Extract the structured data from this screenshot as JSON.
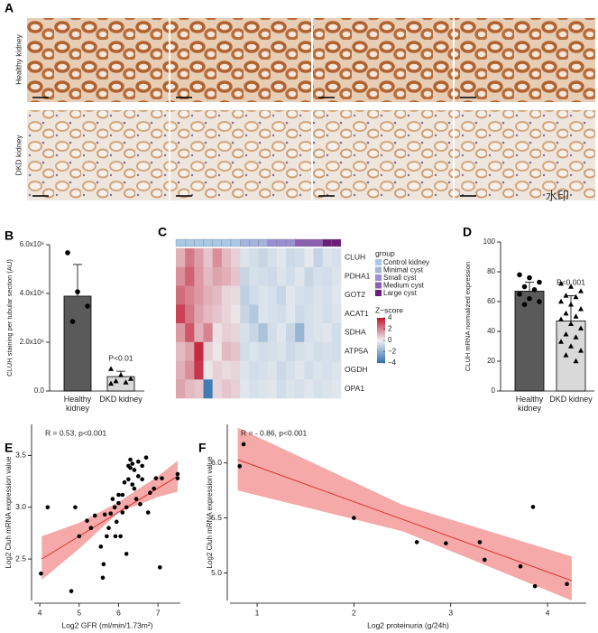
{
  "panel_labels": [
    "A",
    "B",
    "C",
    "D",
    "E",
    "F"
  ],
  "figure_a": {
    "row_labels": [
      "Healthy kidney",
      "DKD kidney"
    ],
    "watermark": "水印"
  },
  "chart_data": [
    {
      "type": "bar",
      "categories": [
        "Healthy kidney",
        "DKD kidney"
      ],
      "values": [
        3890000,
        590000
      ],
      "errors": [
        1300000,
        220000
      ],
      "colors": [
        "#5a5a5a",
        "#d9d9d9"
      ],
      "points": [
        [
          5670000,
          4070000,
          3480000,
          2850000
        ],
        [
          900000,
          650000,
          500000,
          400000,
          350000,
          300000
        ]
      ],
      "point_markers": [
        "circle",
        "triangle"
      ],
      "ylabel": "CLUH staining per tubular section (AU)",
      "annotation": "P<0.01",
      "ylim": [
        0,
        6000000
      ],
      "yticks": [
        {
          "value": 0,
          "label": "0.0"
        },
        {
          "value": 2000000,
          "label": "2.0x10⁶"
        },
        {
          "value": 4000000,
          "label": "4.0x10⁶"
        },
        {
          "value": 6000000,
          "label": "6.0x10⁶"
        }
      ]
    },
    {
      "type": "heatmap",
      "rows": [
        "CLUH",
        "PDHA1",
        "GOT2",
        "ACAT1",
        "SDHA",
        "ATP5A",
        "OGDH",
        "OPA1"
      ],
      "values": [
        [
          1.2,
          2.2,
          1.5,
          0.8,
          1.8,
          1.0,
          0.6,
          -0.4,
          -0.6,
          -0.8,
          -0.5,
          -0.3,
          -0.7,
          -0.6,
          -0.2,
          -0.9,
          -0.4,
          -0.5
        ],
        [
          1.8,
          2.6,
          1.6,
          1.0,
          1.4,
          1.2,
          0.8,
          -0.8,
          -0.5,
          -0.6,
          -0.7,
          -0.4,
          -0.6,
          -0.3,
          -0.8,
          -0.5,
          -0.6,
          -0.4
        ],
        [
          2.4,
          2.0,
          1.6,
          1.2,
          1.0,
          0.5,
          0.4,
          -1.0,
          -0.6,
          -0.4,
          -0.5,
          -0.8,
          -0.3,
          -0.5,
          -0.6,
          -0.4,
          -0.5,
          -0.3
        ],
        [
          3.2,
          2.2,
          1.4,
          1.0,
          0.8,
          0.5,
          0.2,
          -0.8,
          -1.2,
          -0.4,
          -0.5,
          -0.6,
          -0.3,
          -0.7,
          -0.5,
          -0.4,
          -0.6,
          -0.4
        ],
        [
          1.6,
          2.8,
          1.2,
          2.0,
          0.3,
          0.6,
          0.5,
          -0.5,
          -0.8,
          -1.4,
          -0.6,
          -0.3,
          -0.8,
          -1.8,
          -0.5,
          -0.4,
          -0.3,
          -0.6
        ],
        [
          1.0,
          1.4,
          3.6,
          0.6,
          0.2,
          1.0,
          0.8,
          -0.6,
          -0.4,
          -0.6,
          -0.5,
          -0.4,
          -0.7,
          -0.5,
          -0.4,
          -0.6,
          -0.5,
          -0.6
        ],
        [
          1.2,
          1.8,
          3.4,
          0.2,
          0.6,
          0.4,
          0.5,
          -0.4,
          -0.6,
          -0.5,
          -0.4,
          -0.7,
          -0.5,
          -0.3,
          -0.6,
          -0.4,
          -0.5,
          -0.4
        ],
        [
          1.4,
          1.0,
          0.8,
          -3.6,
          0.5,
          0.8,
          0.6,
          -0.3,
          -0.5,
          -0.4,
          -0.3,
          -0.6,
          -0.4,
          -0.5,
          -0.3,
          -0.5,
          -0.4,
          -0.3
        ]
      ],
      "groups": {
        "title": "group",
        "names": [
          "Control kidney",
          "Minimal cyst",
          "Small cyst",
          "Medium cyst",
          "Large cyst"
        ],
        "colors": [
          "#a9c8e6",
          "#a3b3de",
          "#9a8fd0",
          "#8d5fb3",
          "#6b1f7c"
        ],
        "columns": [
          0,
          0,
          0,
          0,
          0,
          0,
          0,
          1,
          1,
          1,
          2,
          2,
          2,
          3,
          3,
          3,
          4,
          4
        ]
      },
      "colorbar": {
        "title": "Z−score",
        "zlim": [
          -4,
          4
        ],
        "colors": [
          "#2f6fae",
          "#eef0f2",
          "#c0162e"
        ],
        "zticks": [
          4,
          2,
          0,
          {
            "value": -2,
            "label": "−2"
          },
          {
            "value": -4,
            "label": "−4"
          }
        ]
      }
    },
    {
      "type": "bar",
      "categories": [
        "Healthy kidney",
        "DKD kidney"
      ],
      "values": [
        67,
        47
      ],
      "errors": [
        6,
        17
      ],
      "colors": [
        "#5a5a5a",
        "#d9d9d9"
      ],
      "points": [
        [
          78,
          76,
          73,
          70,
          68,
          65,
          62,
          60,
          58
        ],
        [
          72,
          70,
          67,
          64,
          63,
          60,
          58,
          55,
          52,
          50,
          48,
          45,
          42,
          38,
          36,
          33,
          30,
          27,
          24,
          20
        ]
      ],
      "point_markers": [
        "circle",
        "triangle"
      ],
      "ylabel": "CLUH mRNA normalized expression",
      "annotation": "P<0.001",
      "ylim": [
        0,
        100
      ],
      "yticks": [
        0,
        20,
        40,
        60,
        80,
        100
      ]
    },
    {
      "type": "scatter",
      "x": [
        4.03,
        4.2,
        4.8,
        4.9,
        5.0,
        5.2,
        5.3,
        5.4,
        5.55,
        5.6,
        5.62,
        5.65,
        5.7,
        5.75,
        5.8,
        5.85,
        5.9,
        5.92,
        5.95,
        6.0,
        6.0,
        6.05,
        6.1,
        6.1,
        6.15,
        6.2,
        6.2,
        6.25,
        6.3,
        6.3,
        6.35,
        6.4,
        6.4,
        6.45,
        6.5,
        6.5,
        6.55,
        6.6,
        6.6,
        6.7,
        6.75,
        6.8,
        6.9,
        6.95,
        7.05,
        7.1,
        7.5,
        7.5,
        6.35,
        6.25
      ],
      "y": [
        2.36,
        3.0,
        2.19,
        3.0,
        2.72,
        2.87,
        2.8,
        2.92,
        2.62,
        2.32,
        2.45,
        2.93,
        2.72,
        2.8,
        2.94,
        3.08,
        3.0,
        2.72,
        2.86,
        3.04,
        3.12,
        2.72,
        2.95,
        3.12,
        3.24,
        2.55,
        3.0,
        3.27,
        3.38,
        3.46,
        3.42,
        3.36,
        3.18,
        3.08,
        3.3,
        3.44,
        3.03,
        3.27,
        3.4,
        3.48,
        2.95,
        3.14,
        3.18,
        3.28,
        2.42,
        3.28,
        3.28,
        3.32,
        3.22,
        3.4
      ],
      "color": "#000000",
      "fit": {
        "x": [
          4.05,
          7.5
        ],
        "y": [
          2.5,
          3.3
        ],
        "color": "#d7322e"
      },
      "band": {
        "x": [
          4.05,
          5,
          6,
          7,
          7.5
        ],
        "lower": [
          2.3,
          2.6,
          2.95,
          3.1,
          3.15
        ],
        "upper": [
          2.72,
          2.85,
          3.05,
          3.3,
          3.45
        ],
        "color": "#f39a9a"
      },
      "annotation": "R = 0.53, p<0.001",
      "xlabel": "Log2 GFR (ml/min/1.73m²)",
      "ylabel": "Log2 Cluh mRNA expression value",
      "xlim": [
        3.86,
        7.57
      ],
      "ylim": [
        2.1,
        3.8
      ],
      "xticks": [
        4,
        5,
        6,
        7
      ],
      "yticks": [
        2.5,
        {
          "value": 3,
          "label": "3.0"
        },
        3.5
      ]
    },
    {
      "type": "scatter",
      "x": [
        0.82,
        0.86,
        2.0,
        2.65,
        2.95,
        3.3,
        3.35,
        3.72,
        3.85,
        3.87,
        4.2
      ],
      "y": [
        5.97,
        6.17,
        5.5,
        5.28,
        5.27,
        5.28,
        5.12,
        5.06,
        5.6,
        4.88,
        4.9
      ],
      "color": "#000000",
      "fit": {
        "x": [
          0.8,
          4.25
        ],
        "y": [
          6.03,
          4.93
        ],
        "color": "#d7322e"
      },
      "band": {
        "x": [
          0.8,
          2.5,
          4.25
        ],
        "lower": [
          5.75,
          5.38,
          4.75
        ],
        "upper": [
          6.32,
          5.62,
          5.15
        ],
        "color": "#f39a9a"
      },
      "annotation": "R = - 0.86, p<0.001",
      "xlabel": "Log2 proteinuria (g/24h)",
      "ylabel": "Log2 Cluh mRNA expression value",
      "xlim": [
        0.72,
        4.4
      ],
      "ylim": [
        4.75,
        6.35
      ],
      "xticks": [
        1,
        2,
        3,
        4
      ],
      "yticks": [
        {
          "value": 5,
          "label": "5.0"
        },
        5.5,
        {
          "value": 6,
          "label": "6.0"
        }
      ]
    }
  ]
}
